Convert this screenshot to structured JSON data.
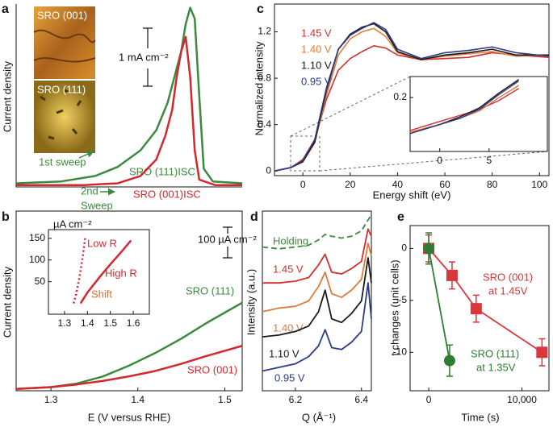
{
  "chart_data": [
    {
      "type": "line",
      "panel_label": "a",
      "ylabel": "Current density",
      "xlim": [
        0,
        1
      ],
      "ylim": [
        0,
        10
      ],
      "inset_labels": [
        "SRO (001)",
        "SRO (111)"
      ],
      "series": [
        {
          "name": "SRO (111)ISC",
          "color": "#3b8a3e",
          "x": [
            0,
            0.2,
            0.35,
            0.45,
            0.55,
            0.62,
            0.67,
            0.7,
            0.73,
            0.75,
            0.77,
            0.79,
            0.81,
            0.83,
            0.87,
            1
          ],
          "values": [
            0.2,
            0.3,
            0.6,
            1.1,
            2,
            3.1,
            4.6,
            6,
            7.4,
            8.9,
            9.8,
            9.2,
            5,
            1,
            0.3,
            0.2
          ]
        },
        {
          "name": "SRO (001)ISC",
          "color": "#d3282e",
          "x": [
            0,
            0.3,
            0.45,
            0.55,
            0.62,
            0.66,
            0.69,
            0.71,
            0.73,
            0.75,
            0.77,
            0.79,
            0.81,
            0.88,
            1
          ],
          "values": [
            0.1,
            0.1,
            0.2,
            0.6,
            1.5,
            2.8,
            4.2,
            6,
            7.4,
            8.2,
            6,
            2,
            0.4,
            0.1,
            0.1
          ]
        }
      ],
      "annotations": [
        {
          "text": "1st sweep",
          "color": "#3b8a3e"
        },
        {
          "text": "2nd",
          "color": "#3b8a3e"
        },
        {
          "text": "Sweep",
          "color": "#3b8a3e"
        },
        {
          "text": "1 mA cm⁻²",
          "color": "#111111"
        }
      ]
    },
    {
      "type": "line",
      "panel_label": "b",
      "ylabel": "Current density",
      "xlabel": "E (V versus RHE)",
      "xlim": [
        1.26,
        1.52
      ],
      "xticks": [
        1.3,
        1.4,
        1.5
      ],
      "ylim": [
        0,
        10
      ],
      "x": [
        1.26,
        1.3,
        1.33,
        1.36,
        1.39,
        1.42,
        1.45,
        1.48,
        1.52
      ],
      "series": [
        {
          "name": "SRO (111)",
          "color": "#3b8a3e",
          "values": [
            0.1,
            0.2,
            0.4,
            0.8,
            1.4,
            2.1,
            2.9,
            3.8,
            4.9
          ]
        },
        {
          "name": "SRO (001)",
          "color": "#d3282e",
          "values": [
            0.1,
            0.2,
            0.35,
            0.55,
            0.8,
            1.1,
            1.5,
            1.95,
            2.5
          ]
        }
      ],
      "annotations": [
        {
          "text": "100 µA cm⁻²",
          "color": "#111111"
        }
      ]
    },
    {
      "type": "line",
      "ylabel": "µA cm⁻²",
      "xlim": [
        1.23,
        1.67
      ],
      "xticks": [
        1.3,
        1.4,
        1.5,
        1.6
      ],
      "ylim": [
        -25,
        170
      ],
      "yticks": [
        50,
        100,
        150
      ],
      "series": [
        {
          "name": "Low R",
          "color": "#d3282e",
          "style": "dotted",
          "x": [
            1.34,
            1.35,
            1.36,
            1.37,
            1.38,
            1.39
          ],
          "values": [
            0,
            20,
            45,
            75,
            110,
            150
          ]
        },
        {
          "name": "High R",
          "color": "#d3282e",
          "x": [
            1.37,
            1.4,
            1.43,
            1.46,
            1.5,
            1.55,
            1.59
          ],
          "values": [
            0,
            25,
            45,
            65,
            90,
            120,
            145
          ]
        }
      ],
      "annotations": [
        {
          "text": "Shift",
          "color": "#d9722f"
        }
      ]
    },
    {
      "type": "line",
      "panel_label": "c",
      "ylabel": "Normalized intensity",
      "xlabel": "Energy shift (eV)",
      "xlim": [
        -12,
        104
      ],
      "xticks": [
        0,
        20,
        40,
        60,
        80,
        100
      ],
      "ylim": [
        -0.04,
        1.44
      ],
      "yticks": [
        0,
        0.4,
        0.8,
        1.2
      ],
      "x": [
        -12,
        -5,
        0,
        5,
        10,
        15,
        20,
        25,
        30,
        35,
        40,
        50,
        60,
        70,
        80,
        90,
        104
      ],
      "series": [
        {
          "name": "1.45 V",
          "color": "#d22f2f",
          "values": [
            0,
            0.03,
            0.1,
            0.27,
            0.62,
            0.87,
            0.97,
            1.03,
            1.08,
            1.06,
            1,
            0.96,
            0.97,
            0.98,
            1.02,
            1,
            0.98
          ]
        },
        {
          "name": "1.40 V",
          "color": "#e07b39",
          "values": [
            0,
            0.03,
            0.08,
            0.24,
            0.66,
            1,
            1.14,
            1.2,
            1.23,
            1.16,
            1.02,
            0.96,
            0.99,
            1.01,
            1.03,
            0.99,
            1
          ]
        },
        {
          "name": "1.10 V",
          "color": "#1a1a1a",
          "values": [
            0,
            0.03,
            0.08,
            0.25,
            0.7,
            1.05,
            1.18,
            1.24,
            1.27,
            1.2,
            1.03,
            0.96,
            1,
            1.02,
            1.05,
            1,
            1
          ]
        },
        {
          "name": "0.95 V",
          "color": "#2d3a84",
          "values": [
            0,
            0.03,
            0.09,
            0.27,
            0.72,
            1.05,
            1.17,
            1.23,
            1.28,
            1.22,
            1.05,
            0.97,
            1.02,
            1.04,
            1.07,
            1.02,
            0.99
          ]
        }
      ]
    },
    {
      "type": "line",
      "xlim": [
        -3,
        10.9
      ],
      "xticks": [
        0,
        5
      ],
      "ylim": [
        0.02,
        0.27
      ],
      "yticks": [
        0.2
      ],
      "x": [
        -3,
        0,
        2,
        4,
        6,
        8
      ],
      "series": [
        {
          "color": "#d22f2f",
          "values": [
            0.09,
            0.12,
            0.14,
            0.16,
            0.19,
            0.23
          ]
        },
        {
          "color": "#e07b39",
          "values": [
            0.085,
            0.11,
            0.13,
            0.155,
            0.2,
            0.24
          ]
        },
        {
          "color": "#1a1a1a",
          "values": [
            0.08,
            0.11,
            0.135,
            0.165,
            0.215,
            0.26
          ]
        },
        {
          "color": "#2d3a84",
          "values": [
            0.08,
            0.11,
            0.13,
            0.16,
            0.21,
            0.255
          ]
        }
      ]
    },
    {
      "type": "line",
      "panel_label": "d",
      "ylabel": "Intensity (a.u.)",
      "xlabel": "Q (Å⁻¹)",
      "xlim": [
        6.1,
        6.43
      ],
      "xticks": [
        6.2,
        6.4
      ],
      "ylim": [
        0,
        10
      ],
      "x": [
        6.1,
        6.15,
        6.2,
        6.24,
        6.27,
        6.29,
        6.31,
        6.34,
        6.37,
        6.4,
        6.42,
        6.43
      ],
      "series": [
        {
          "name": "Holding",
          "color": "#3b8a3e",
          "style": "dashed",
          "values": [
            8,
            7.9,
            8,
            8.1,
            8.4,
            8.7,
            8.6,
            8.5,
            8.6,
            8.9,
            9.5,
            9.8
          ]
        },
        {
          "name": "1.45 V",
          "color": "#d22f2f",
          "values": [
            6,
            6,
            6.1,
            6.3,
            7,
            7.6,
            6.6,
            6.5,
            6.8,
            7.2,
            9,
            8.6
          ]
        },
        {
          "name": "1.40 V",
          "color": "#e07b39",
          "values": [
            4.4,
            4.6,
            4.7,
            5,
            5.8,
            6.6,
            5.4,
            5.2,
            5.6,
            6.2,
            8.2,
            7.5
          ]
        },
        {
          "name": "1.10 V",
          "color": "#1a1a1a",
          "values": [
            3,
            3.1,
            3.3,
            3.6,
            4.4,
            5.6,
            4,
            3.8,
            4.3,
            5,
            7.4,
            6
          ]
        },
        {
          "name": "0.95 V",
          "color": "#2d3a84",
          "values": [
            1.1,
            1.3,
            1.5,
            1.9,
            2.5,
            3.4,
            2.4,
            2.3,
            2.7,
            3.3,
            6,
            4
          ]
        }
      ]
    },
    {
      "type": "scatter",
      "panel_label": "e",
      "ylabel": "t changes (unit cells)",
      "xlabel": "Time (s)",
      "xlim": [
        -2000,
        12900
      ],
      "xticks": [
        0,
        {
          "value": 10000,
          "label": "10,000"
        }
      ],
      "ylim": [
        -13.7,
        2.2
      ],
      "yticks": [
        0,
        -5,
        -10
      ],
      "series": [
        {
          "name": "SRO (001)",
          "note": "at 1.45V",
          "color": "#d9363e",
          "marker": "square",
          "x": [
            0,
            2500,
            5090,
            12150
          ],
          "values": [
            0,
            -2.6,
            -5.8,
            -10
          ],
          "errors": [
            1.3,
            1.3,
            1.3,
            1.3
          ]
        },
        {
          "name": "SRO (111)",
          "note": "at 1.35V",
          "color": "#2e7d32",
          "marker": "circle",
          "x": [
            0,
            2240
          ],
          "values": [
            0,
            -10.8
          ],
          "errors": [
            1.5,
            1.5
          ]
        }
      ]
    }
  ]
}
